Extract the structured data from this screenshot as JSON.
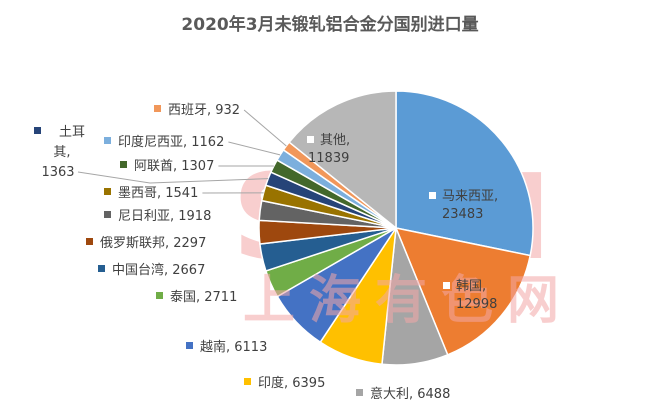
{
  "chart_data": {
    "type": "pie",
    "title": "2020年3月未锻轧铝合金分国别进口量",
    "slices": [
      {
        "label": "马来西亚",
        "value": 23483,
        "color": "#5b9bd5"
      },
      {
        "label": "韩国",
        "value": 12998,
        "color": "#ed7d31"
      },
      {
        "label": "意大利",
        "value": 6488,
        "color": "#a5a5a5"
      },
      {
        "label": "印度",
        "value": 6395,
        "color": "#ffc000"
      },
      {
        "label": "越南",
        "value": 6113,
        "color": "#4472c4"
      },
      {
        "label": "泰国",
        "value": 2711,
        "color": "#70ad47"
      },
      {
        "label": "中国台湾",
        "value": 2667,
        "color": "#255e91"
      },
      {
        "label": "俄罗斯联邦",
        "value": 2297,
        "color": "#9e480e"
      },
      {
        "label": "尼日利亚",
        "value": 1918,
        "color": "#636363"
      },
      {
        "label": "墨西哥",
        "value": 1541,
        "color": "#997300"
      },
      {
        "label": "土耳其",
        "value": 1363,
        "color": "#264478"
      },
      {
        "label": "阿联酋",
        "value": 1307,
        "color": "#43682b"
      },
      {
        "label": "印度尼西亚",
        "value": 1162,
        "color": "#7cafdd"
      },
      {
        "label": "西班牙",
        "value": 932,
        "color": "#f1975a"
      },
      {
        "label": "其他",
        "value": 11839,
        "color": "#b7b7b7"
      }
    ],
    "legend": "none",
    "data_labels": "category, value"
  },
  "watermark": {
    "logo_text": "SMM",
    "text": "上海有色网",
    "color": "#f4a7a7"
  }
}
